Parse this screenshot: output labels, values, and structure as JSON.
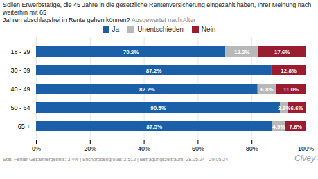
{
  "chart_data": {
    "type": "bar",
    "orientation": "horizontal",
    "stacked": true,
    "title": "Sollen Erwerbstätige, die 45 Jahre in die gesetzliche Rentenversicherung eingezahlt haben, Ihrer Meinung nach weiterhin mit 65\nJahren abschlagsfrei in Rente gehen können?",
    "subtitle": "Ausgewertet nach Alter",
    "categories": [
      "18 - 29",
      "30 - 39",
      "40 - 49",
      "50 - 64",
      "65 +"
    ],
    "series": [
      {
        "name": "Ja",
        "color": "#1a5fa8",
        "values": [
          70.2,
          87.2,
          82.2,
          90.5,
          87.5
        ],
        "value_labels": [
          "70.2%",
          "87.2%",
          "82.2%",
          "90.5%",
          "87.5%"
        ]
      },
      {
        "name": "Unentschieden",
        "color": "#b8b8b8",
        "values": [
          12.2,
          0.0,
          6.8,
          2.9,
          4.9
        ],
        "value_labels": [
          "12.2%",
          null,
          "6.8%",
          "2.9%",
          "4.9%"
        ]
      },
      {
        "name": "Nein",
        "color": "#9b1c2e",
        "values": [
          17.6,
          12.8,
          11.0,
          6.6,
          7.6
        ],
        "value_labels": [
          "17.6%",
          "12.8%",
          "11.0%",
          "6.6%",
          "7.6%"
        ]
      }
    ],
    "xlim": [
      0,
      100
    ],
    "xticks": [
      {
        "value": 0,
        "label": "0%"
      },
      {
        "value": 20,
        "label": "20%"
      },
      {
        "value": 40,
        "label": "40%"
      },
      {
        "value": 60,
        "label": "60%"
      },
      {
        "value": 80,
        "label": "80%"
      },
      {
        "value": 100,
        "label": "100%"
      }
    ],
    "grid": true,
    "legend": "top",
    "data_labels": true,
    "annotations": [
      "Stat. Fehler Gesamtergebnis: 3,4% | Stichprobengröße: 2.512 | Befragungszeitraum: 28.05.24 - 29.05.24",
      "Civey"
    ]
  }
}
